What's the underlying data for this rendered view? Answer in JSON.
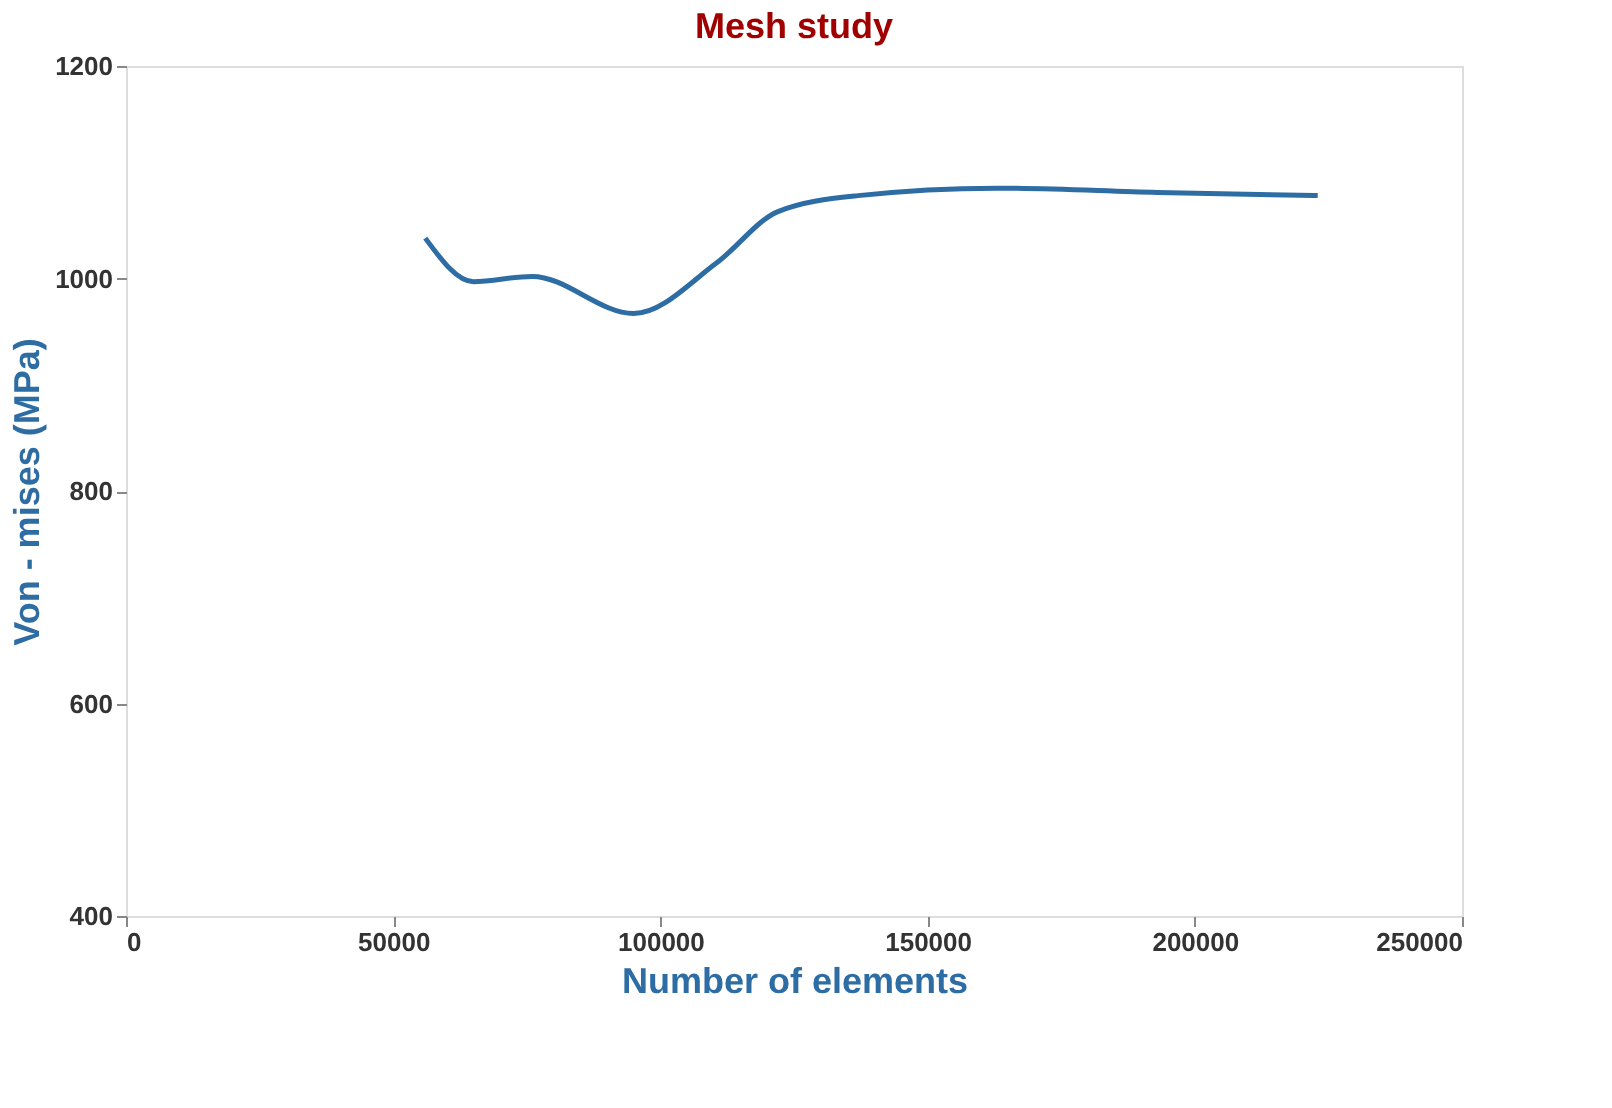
{
  "chart_data": {
    "type": "line",
    "title": "Mesh study",
    "xlabel": "Number of elements",
    "ylabel": "Von - mises (MPa)",
    "x": [
      56000,
      65000,
      76000,
      95000,
      110600,
      122000,
      137000,
      163000,
      193000,
      223000
    ],
    "series": [
      {
        "color": "#2e6ca4",
        "values": [
          1038,
          997,
          1002,
          967,
          1015,
          1063,
          1078,
          1085,
          1081,
          1078
        ]
      }
    ],
    "xlim": [
      0,
      250000
    ],
    "xticks": [
      0,
      50000,
      100000,
      150000,
      200000,
      250000
    ],
    "ylim": [
      400,
      1200
    ],
    "yticks": [
      400,
      600,
      800,
      1000,
      1200
    ],
    "grid": false,
    "legend": false,
    "marker": "none",
    "line_style": "solid"
  }
}
